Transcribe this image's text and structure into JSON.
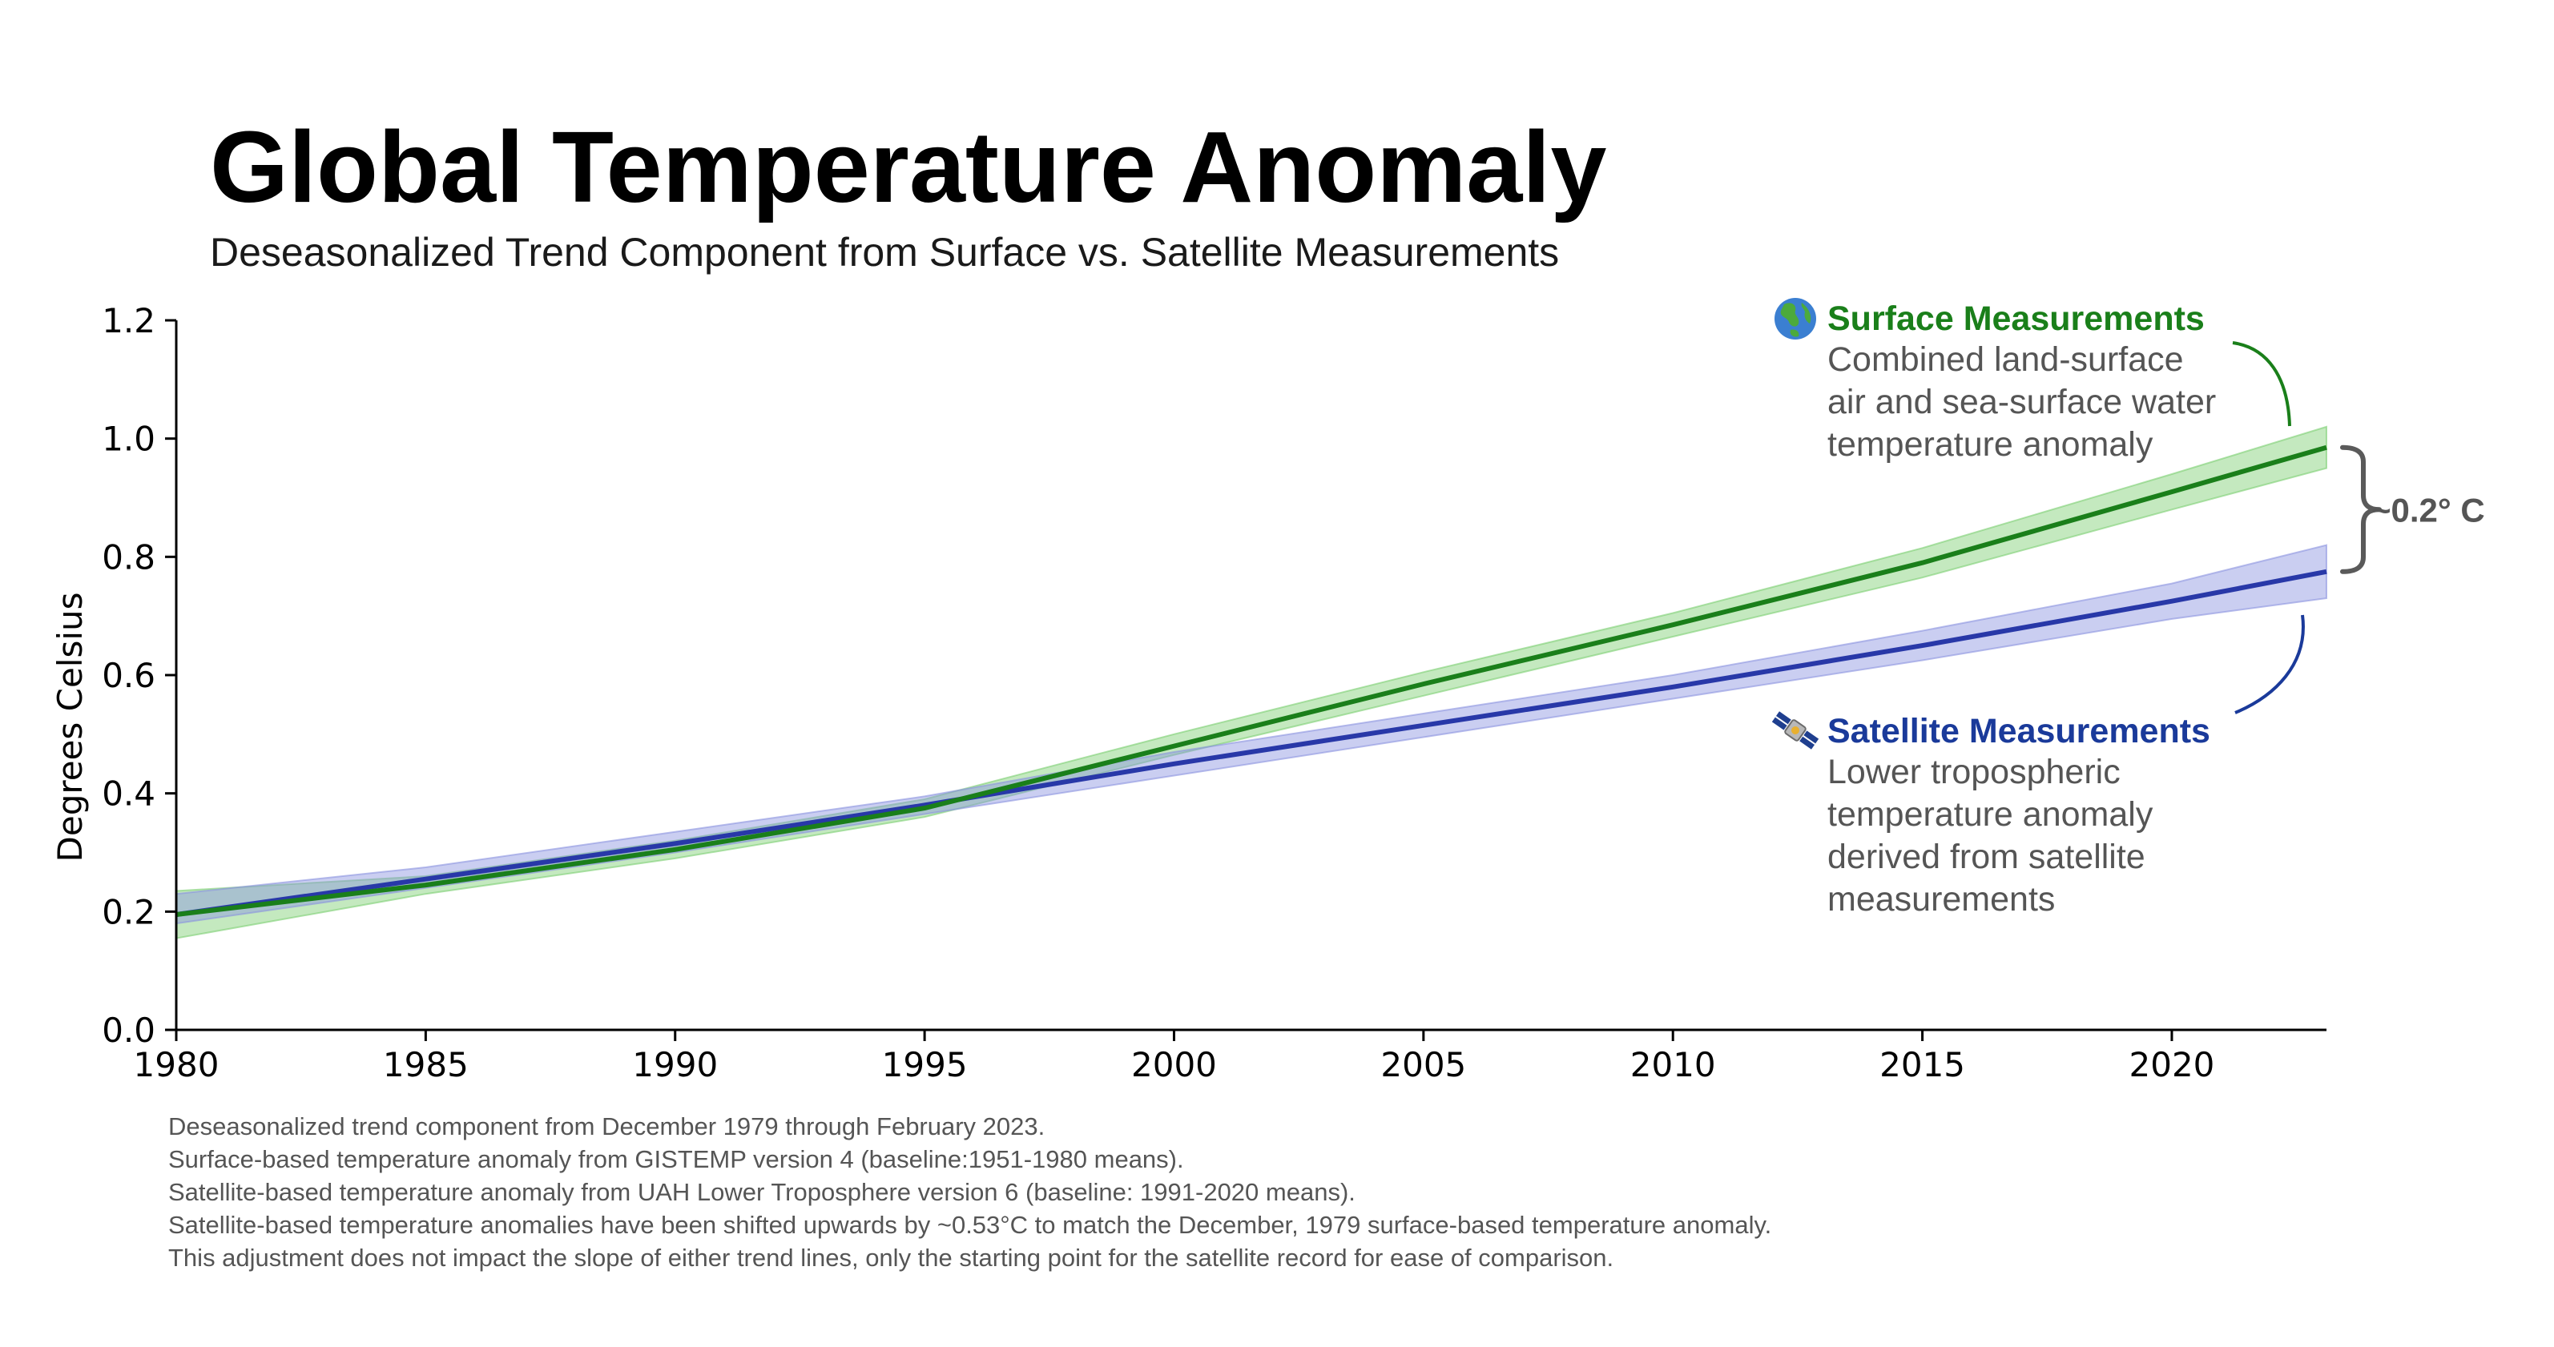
{
  "title": "Global Temperature Anomaly",
  "subtitle": "Deseasonalized Trend Component from Surface vs. Satellite Measurements",
  "chart_data": {
    "type": "line",
    "xlabel": "",
    "ylabel": "Degrees Celsius",
    "xlim": [
      1980,
      2023.1
    ],
    "ylim": [
      0.0,
      1.2
    ],
    "xticks": [
      1980,
      1985,
      1990,
      1995,
      2000,
      2005,
      2010,
      2015,
      2020
    ],
    "yticks": [
      0.0,
      0.2,
      0.4,
      0.6,
      0.8,
      1.0,
      1.2
    ],
    "xtick_labels": [
      "1980",
      "1985",
      "1990",
      "1995",
      "2000",
      "2005",
      "2010",
      "2015",
      "2020"
    ],
    "ytick_labels": [
      "0.0",
      "0.2",
      "0.4",
      "0.6",
      "0.8",
      "1.0",
      "1.2"
    ],
    "grid": false,
    "series": [
      {
        "name": "Surface Measurements",
        "color": "#1a7f1a",
        "band_color": "#7ccf72",
        "x": [
          1980,
          1985,
          1990,
          1995,
          2000,
          2005,
          2010,
          2015,
          2020,
          2023.1
        ],
        "y": [
          0.195,
          0.245,
          0.305,
          0.375,
          0.48,
          0.585,
          0.685,
          0.79,
          0.91,
          0.985
        ],
        "lower": [
          0.155,
          0.23,
          0.29,
          0.36,
          0.465,
          0.565,
          0.665,
          0.765,
          0.88,
          0.95
        ],
        "upper": [
          0.235,
          0.26,
          0.32,
          0.39,
          0.5,
          0.605,
          0.705,
          0.815,
          0.94,
          1.02
        ]
      },
      {
        "name": "Satellite Measurements",
        "color": "#2838a8",
        "band_color": "#8a92e0",
        "x": [
          1980,
          1985,
          1990,
          1995,
          2000,
          2005,
          2010,
          2015,
          2020,
          2023.1
        ],
        "y": [
          0.195,
          0.255,
          0.315,
          0.38,
          0.45,
          0.515,
          0.58,
          0.65,
          0.725,
          0.775
        ],
        "lower": [
          0.18,
          0.24,
          0.3,
          0.365,
          0.43,
          0.495,
          0.56,
          0.625,
          0.695,
          0.73
        ],
        "upper": [
          0.23,
          0.275,
          0.335,
          0.395,
          0.47,
          0.535,
          0.6,
          0.675,
          0.755,
          0.82
        ]
      }
    ],
    "annotations": [
      {
        "title": "Surface Measurements",
        "title_color": "#1a7f1a",
        "icon": "earth-globe-icon",
        "lines": [
          "Combined land-surface",
          "air and sea-surface water",
          "temperature anomaly"
        ]
      },
      {
        "title": "Satellite Measurements",
        "title_color": "#1a3a9a",
        "icon": "satellite-icon",
        "lines": [
          "Lower tropospheric",
          "temperature anomaly",
          "derived from satellite",
          "measurements"
        ]
      }
    ],
    "bracket": {
      "label": "~0.2° C",
      "from": 0.775,
      "to": 0.985
    }
  },
  "footnotes": [
    "Deseasonalized trend component from December 1979 through February 2023.",
    "Surface-based temperature anomaly from GISTEMP version 4 (baseline:1951-1980 means).",
    "Satellite-based temperature anomaly from UAH Lower Troposphere version 6 (baseline: 1991-2020 means).",
    "Satellite-based temperature anomalies have been shifted upwards by ~0.53°C to match the December, 1979 surface-based temperature anomaly.",
    "This adjustment does not impact the slope of either trend lines, only the starting point for the satellite record for ease of comparison."
  ]
}
